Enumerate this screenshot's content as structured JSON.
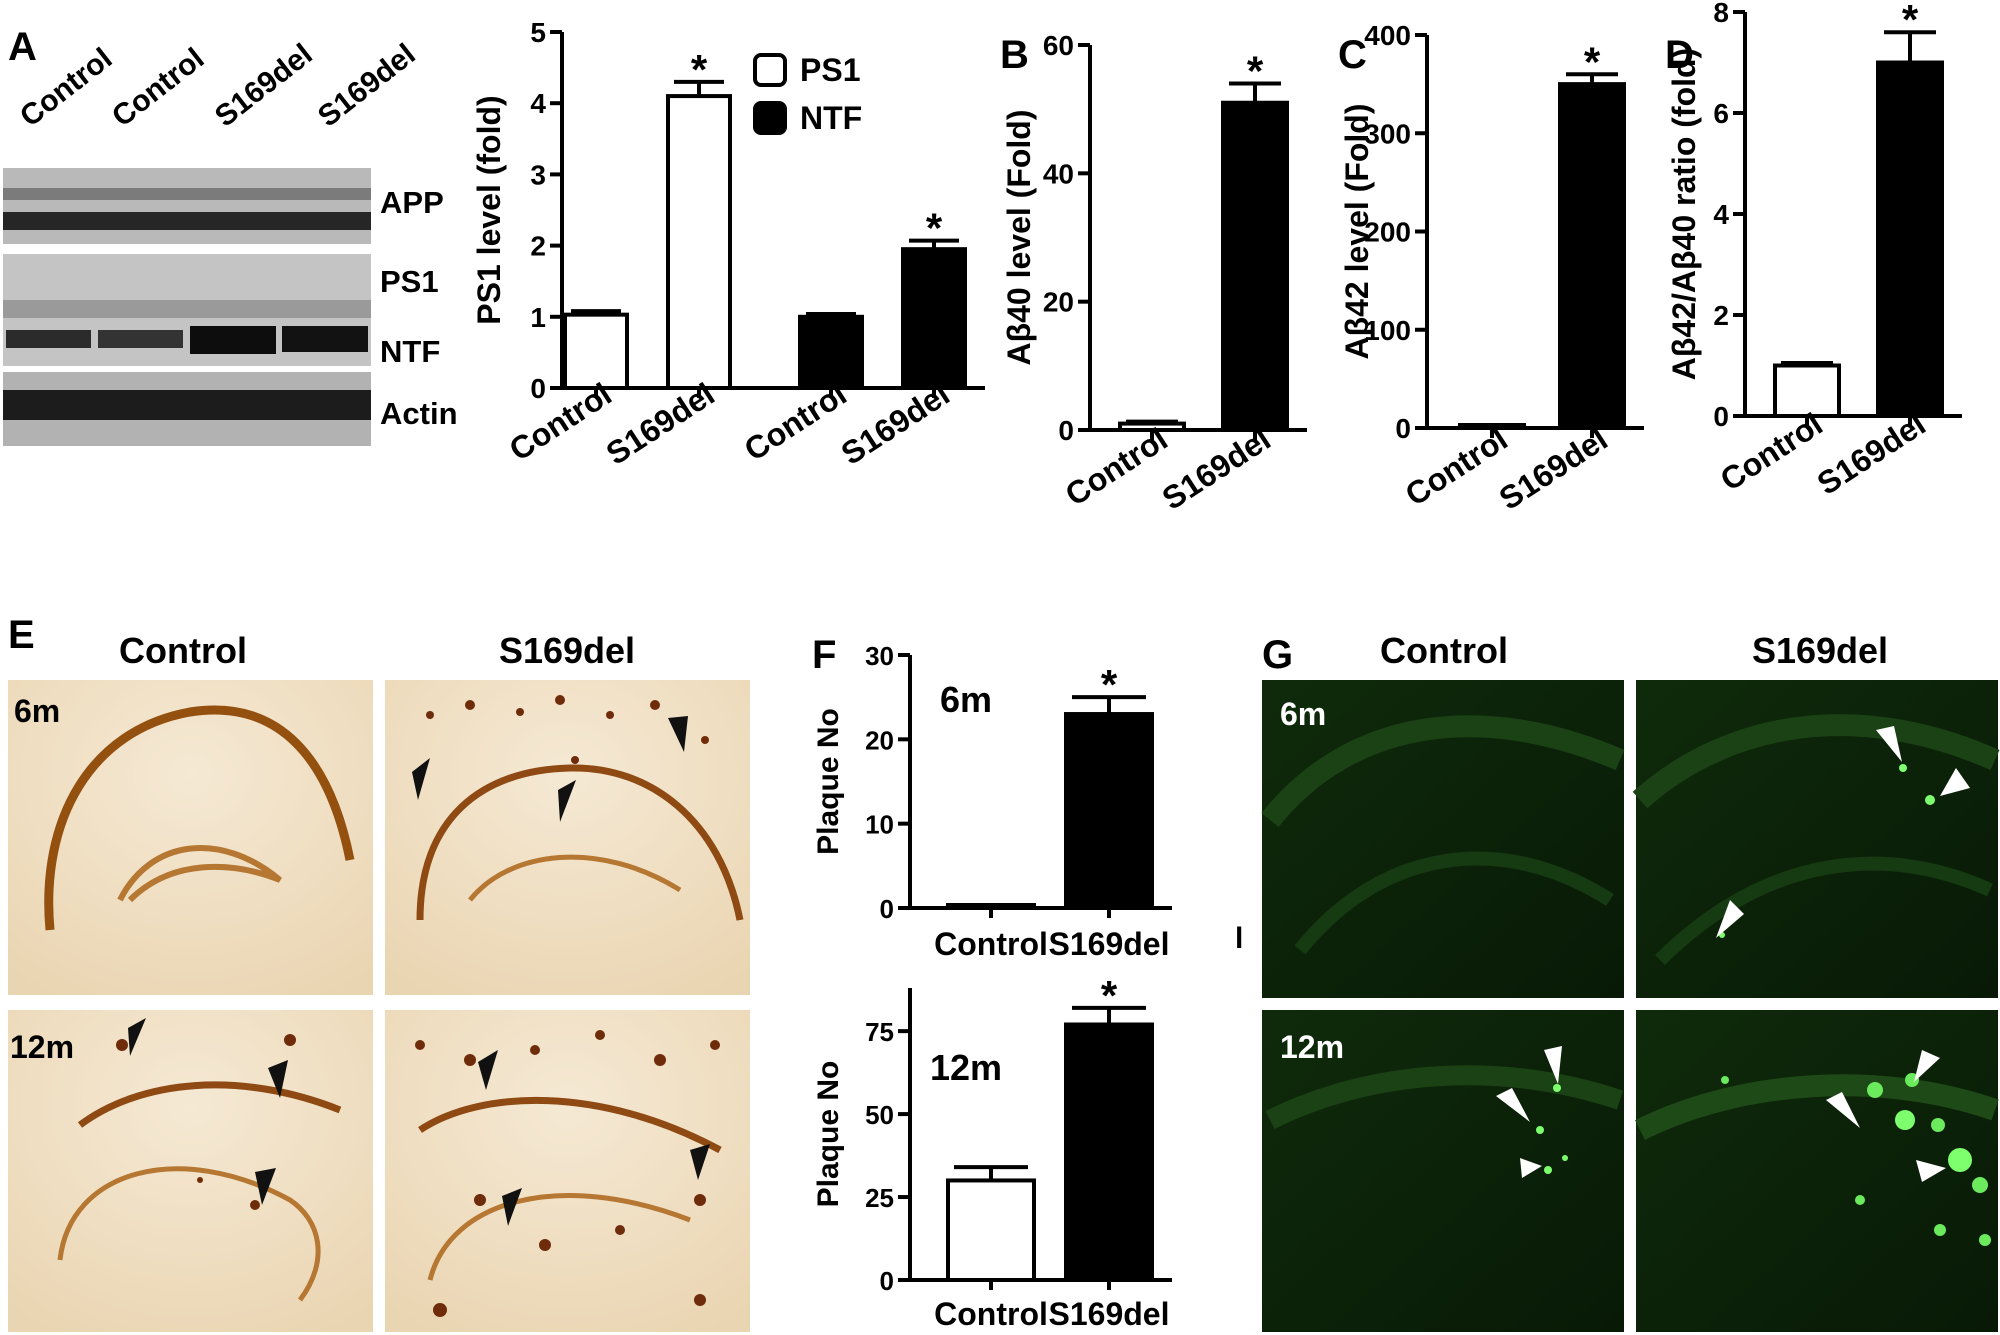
{
  "panel_letters": {
    "A": "A",
    "B": "B",
    "C": "C",
    "D": "D",
    "E": "E",
    "F": "F",
    "G": "G"
  },
  "blot": {
    "lanes": [
      "Control",
      "Control",
      "S169del",
      "S169del"
    ],
    "bands": [
      "APP",
      "PS1",
      "NTF",
      "Actin"
    ]
  },
  "chart_data": [
    {
      "id": "A",
      "type": "bar",
      "ylabel": "PS1 level (fold)",
      "ylim": [
        0,
        5
      ],
      "yticks": [
        0,
        1,
        2,
        3,
        4,
        5
      ],
      "categories": [
        "Control",
        "S169del",
        "Control",
        "S169del"
      ],
      "values": [
        1.03,
        4.1,
        1.0,
        1.95
      ],
      "errors": [
        0.05,
        0.2,
        0.04,
        0.12
      ],
      "fills": [
        "#ffffff",
        "#ffffff",
        "#000000",
        "#000000"
      ],
      "significance": [
        "",
        "*",
        "",
        "*"
      ],
      "legend": [
        {
          "name": "PS1",
          "fill": "#ffffff"
        },
        {
          "name": "NTF",
          "fill": "#000000"
        }
      ],
      "legend_position": "top-right"
    },
    {
      "id": "B",
      "type": "bar",
      "ylabel": "Aβ40 level (Fold)",
      "ylim": [
        0,
        60
      ],
      "yticks": [
        0,
        20,
        40,
        60
      ],
      "categories": [
        "Control",
        "S169del"
      ],
      "values": [
        1,
        51
      ],
      "errors": [
        0.3,
        3
      ],
      "fills": [
        "#ffffff",
        "#000000"
      ],
      "significance": [
        "",
        "*"
      ]
    },
    {
      "id": "C",
      "type": "bar",
      "ylabel": "Aβ42 level (Fold)",
      "ylim": [
        0,
        400
      ],
      "yticks": [
        0,
        100,
        200,
        300,
        400
      ],
      "categories": [
        "Control",
        "S169del"
      ],
      "values": [
        1,
        350
      ],
      "errors": [
        0.5,
        10
      ],
      "fills": [
        "#ffffff",
        "#000000"
      ],
      "significance": [
        "",
        "*"
      ]
    },
    {
      "id": "D",
      "type": "bar",
      "ylabel": "Aβ42/Aβ40 ratio (fold)",
      "ylim": [
        0,
        8
      ],
      "yticks": [
        0,
        2,
        4,
        6,
        8
      ],
      "categories": [
        "Control",
        "S169del"
      ],
      "values": [
        1,
        7
      ],
      "errors": [
        0.05,
        0.6
      ],
      "fills": [
        "#ffffff",
        "#000000"
      ],
      "significance": [
        "",
        "*"
      ]
    },
    {
      "id": "F-6m",
      "type": "bar",
      "ylabel": "Plaque No",
      "annotation": "6m",
      "ylim": [
        0,
        30
      ],
      "yticks": [
        0,
        10,
        20,
        30
      ],
      "categories": [
        "Control",
        "S169del"
      ],
      "values": [
        0,
        23
      ],
      "errors": [
        0,
        2
      ],
      "fills": [
        "#ffffff",
        "#000000"
      ],
      "significance": [
        "",
        "*"
      ]
    },
    {
      "id": "F-12m",
      "type": "bar",
      "ylabel": "Plaque No",
      "annotation": "12m",
      "ylim": [
        0,
        88
      ],
      "yticks": [
        0,
        25,
        50,
        75
      ],
      "categories": [
        "Control",
        "S169del"
      ],
      "values": [
        30,
        77
      ],
      "errors": [
        4,
        5
      ],
      "fills": [
        "#ffffff",
        "#000000"
      ],
      "significance": [
        "",
        "*"
      ]
    }
  ],
  "histology_E": {
    "columns": [
      "Control",
      "S169del"
    ],
    "rows": [
      "6m",
      "12m"
    ],
    "colors": {
      "background": "#f3e6cf",
      "stain": "#8f4a14",
      "plaque": "#6e2c0a"
    }
  },
  "histology_G": {
    "columns": [
      "Control",
      "S169del"
    ],
    "rows": [
      "6m",
      "12m"
    ],
    "colors": {
      "background": "#0c2108",
      "signal": "#36c43a",
      "plaque": "#7dff6e"
    }
  },
  "stray_mark": "l"
}
